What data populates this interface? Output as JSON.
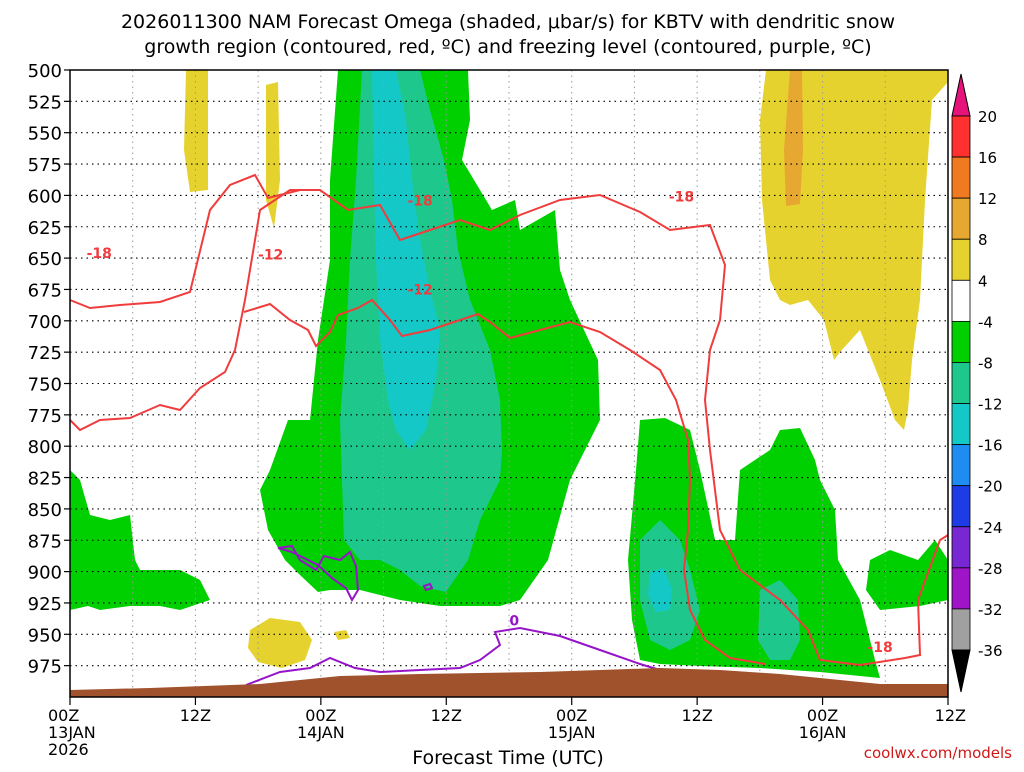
{
  "chart_data": {
    "type": "heatmap",
    "title_line1": "2026011300 NAM Forecast Omega (shaded, μbar/s) for KBTV with dendritic snow",
    "title_line2": "growth region (contoured, red, ºC) and freezing level (contoured, purple, ºC)",
    "xlabel": "Forecast Time (UTC)",
    "ylabel": "",
    "credit": "coolwx.com/models",
    "x_ticks": [
      {
        "label": "00Z",
        "day": "13JAN",
        "year": "2026",
        "hour": 0
      },
      {
        "label": "12Z",
        "day": "",
        "year": "",
        "hour": 12
      },
      {
        "label": "00Z",
        "day": "14JAN",
        "year": "",
        "hour": 24
      },
      {
        "label": "12Z",
        "day": "",
        "year": "",
        "hour": 36
      },
      {
        "label": "00Z",
        "day": "15JAN",
        "year": "",
        "hour": 48
      },
      {
        "label": "12Z",
        "day": "",
        "year": "",
        "hour": 60
      },
      {
        "label": "00Z",
        "day": "16JAN",
        "year": "",
        "hour": 72
      },
      {
        "label": "12Z",
        "day": "",
        "year": "",
        "hour": 84
      }
    ],
    "xlim": [
      0,
      84
    ],
    "y_ticks": [
      500,
      525,
      550,
      575,
      600,
      625,
      650,
      675,
      700,
      725,
      750,
      775,
      800,
      825,
      850,
      875,
      900,
      925,
      950,
      975
    ],
    "ylim": [
      500,
      1000
    ],
    "grid": true,
    "colorbar": {
      "labels": [
        "20",
        "16",
        "12",
        "8",
        "4",
        "-4",
        "-8",
        "-12",
        "-16",
        "-20",
        "-24",
        "-28",
        "-32",
        "-36"
      ],
      "colors": [
        "#ff3030",
        "#f07a22",
        "#e6a830",
        "#e6d22e",
        "#ffffff",
        "#00d000",
        "#1ec88c",
        "#14c8c8",
        "#1e8cf0",
        "#1e3ce6",
        "#7828d2",
        "#a014c8",
        "#a0a0a0"
      ],
      "top_arrow_color": "#e6147a",
      "bottom_arrow_color": "#000000"
    },
    "fill_colors": {
      "green": "#00d000",
      "teal": "#1ec88c",
      "cyan": "#14c8c8",
      "yellow": "#e6d22e",
      "orange": "#e6a830",
      "terrain": "#a0522d"
    },
    "contour_colors": {
      "dgz": "#f03c3c",
      "freezing": "#9614c8"
    },
    "contour_labels": [
      {
        "text": "-18",
        "x": 2.8,
        "y": 646
      },
      {
        "text": "-18",
        "x": 33.5,
        "y": 604
      },
      {
        "text": "-18",
        "x": 58.5,
        "y": 601
      },
      {
        "text": "-18",
        "x": 77.5,
        "y": 960
      },
      {
        "text": "-12",
        "x": 19.2,
        "y": 647
      },
      {
        "text": "-12",
        "x": 33.5,
        "y": 675
      },
      {
        "text": "0",
        "x": 42.5,
        "y": 939
      }
    ]
  }
}
